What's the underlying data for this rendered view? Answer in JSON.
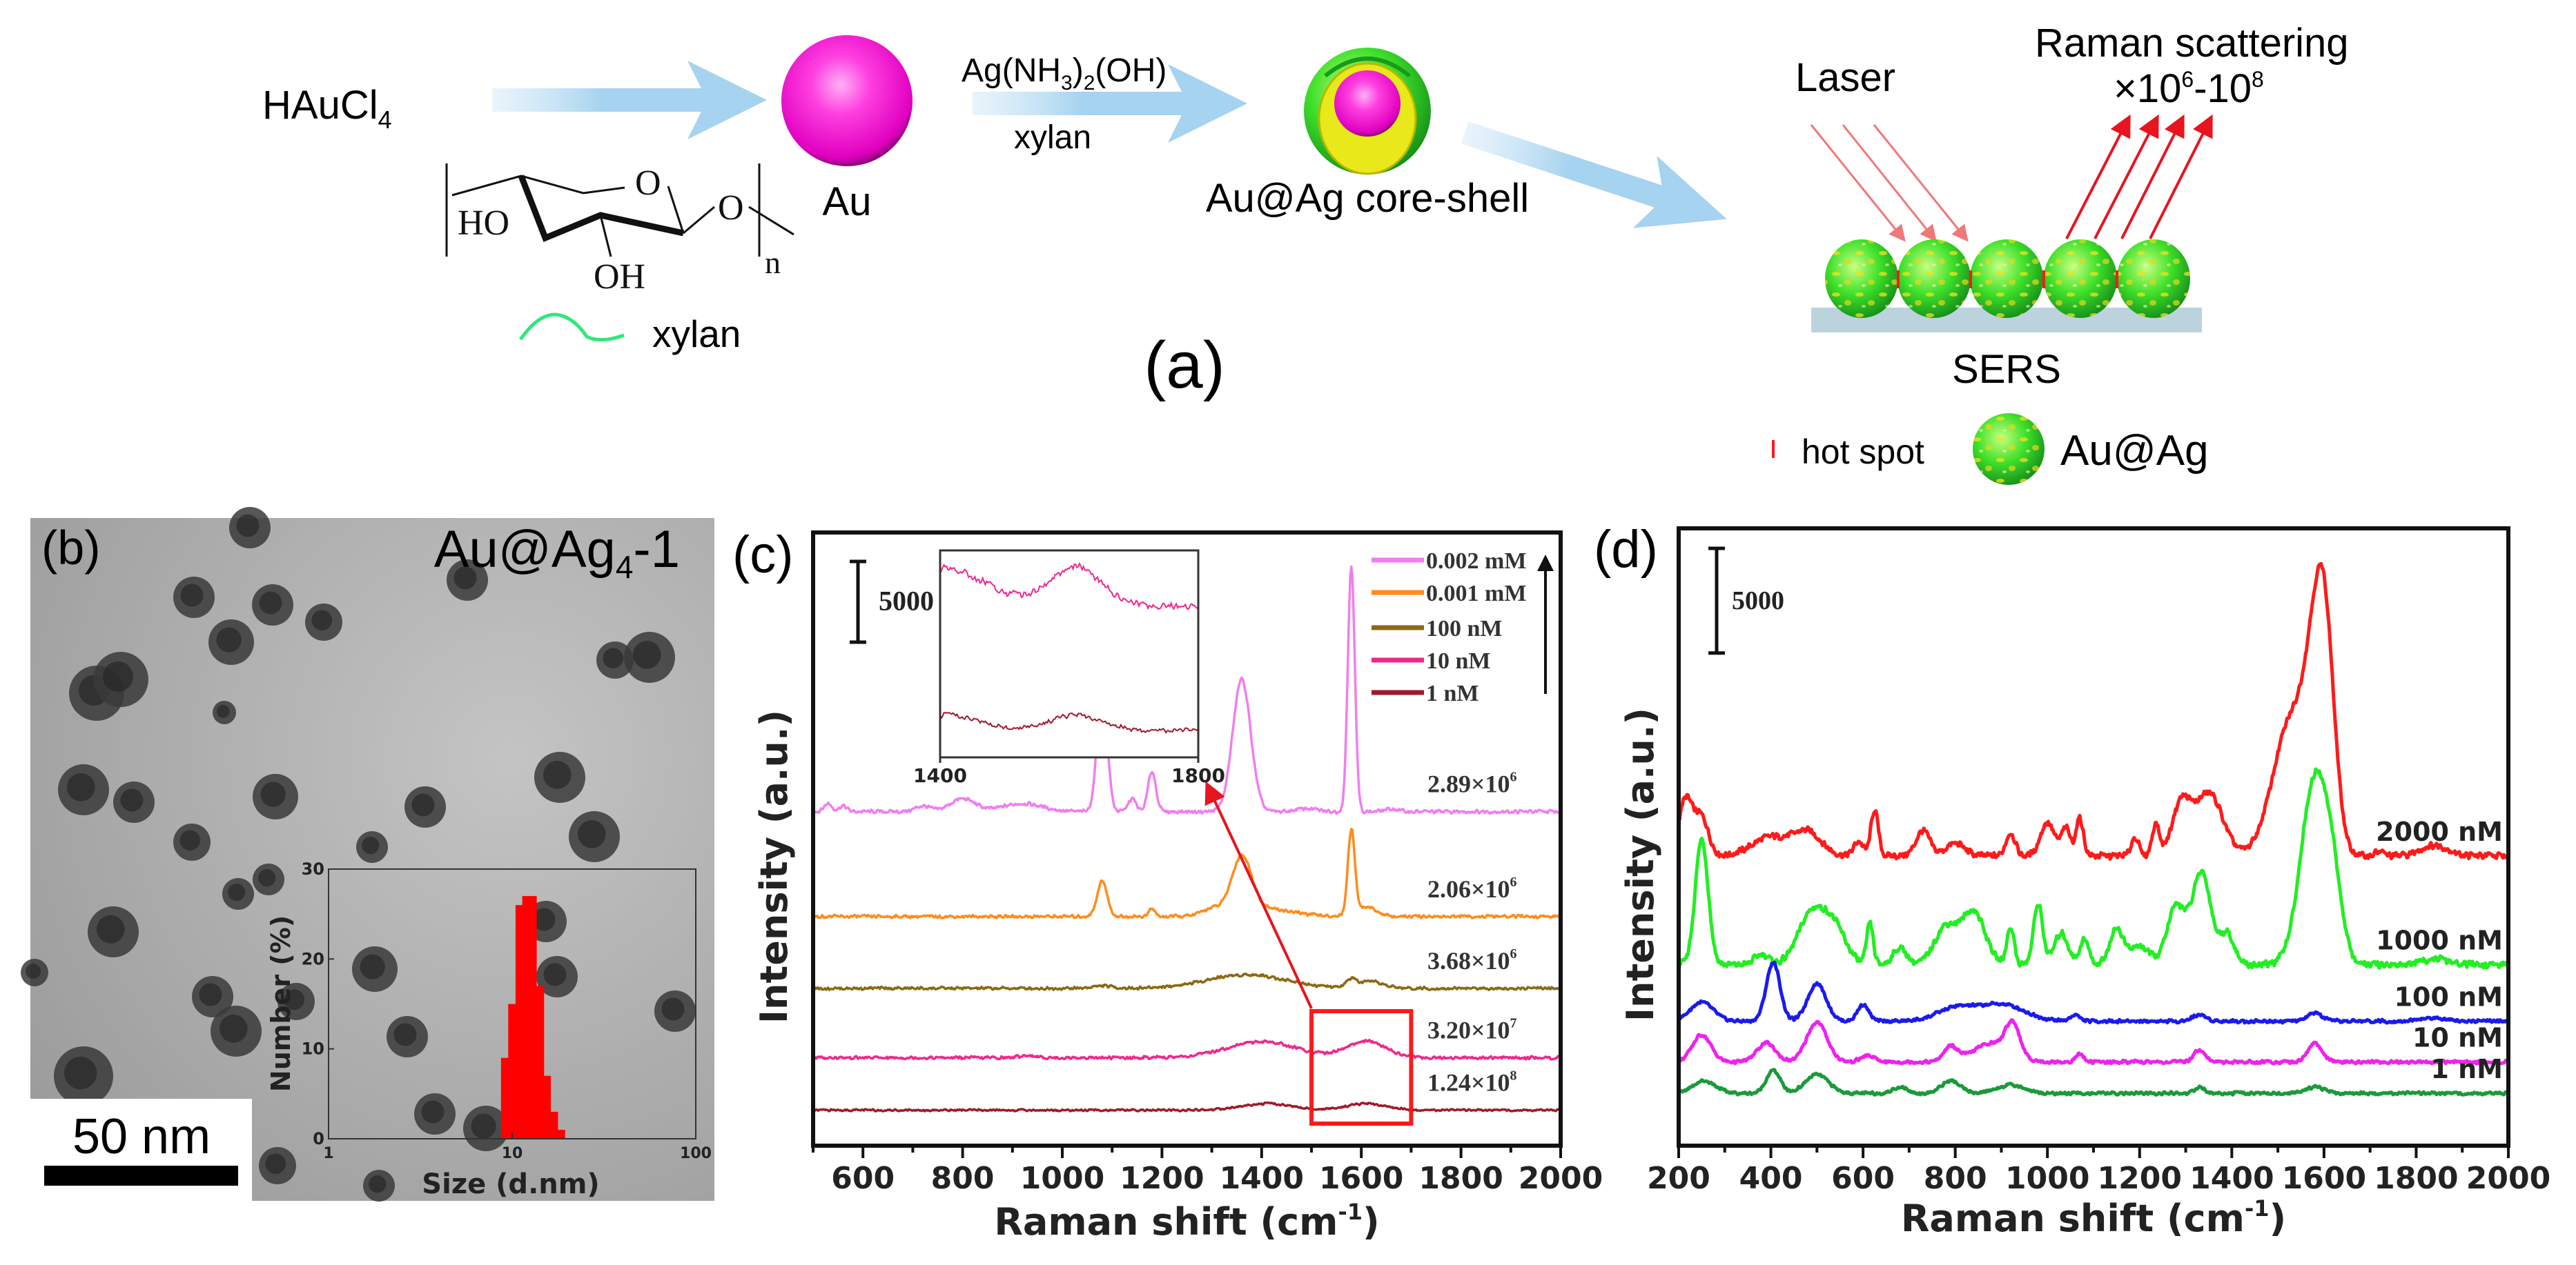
{
  "panel_a": {
    "label": "(a)",
    "precursor": {
      "text": "HAuCl",
      "sub": "4"
    },
    "au_label": "Au",
    "reagent": {
      "a": "Ag(NH",
      "sub1": "3",
      "b": ")",
      "sub2": "2",
      "c": "(OH)"
    },
    "reagent_xylan": "xylan",
    "core_shell_label": "Au@Ag core-shell",
    "structure": {
      "ho": "HO",
      "o_ring": "O",
      "oh": "OH",
      "o_link": "O",
      "n": "n"
    },
    "legend_xylan": "xylan",
    "laser": "Laser",
    "raman_title": "Raman scattering",
    "enhancement": {
      "prefix": "×10",
      "exp1": "6",
      "mid": "-10",
      "exp2": "8"
    },
    "sers": "SERS",
    "hot_spot": "hot spot",
    "au_ag": "Au@Ag",
    "colors": {
      "arrow": "#a6d3ef",
      "au": "#ff2bd6",
      "laser": "#f07878",
      "scatter": "#e8141e",
      "sphere": "#33dd22"
    }
  },
  "panel_b": {
    "label": "(b)",
    "sample": {
      "text": "Au@Ag",
      "sub": "4",
      "suffix": "-1"
    },
    "scale_bar": "50 nm"
  },
  "panel_c": {
    "label": "(c)"
  },
  "panel_d": {
    "label": "(d)"
  },
  "chart_data": [
    {
      "id": "size-histogram",
      "type": "bar",
      "x_scale": "log",
      "sizes": [
        9.5,
        10.4,
        11.4,
        12.4,
        13.6,
        14.8,
        16.2,
        17.7
      ],
      "values": [
        9,
        15,
        26,
        27,
        17,
        7,
        3,
        1
      ],
      "xlim": [
        1,
        100
      ],
      "ylim": [
        0,
        30
      ],
      "xticks": [
        1,
        10,
        100
      ],
      "yticks": [
        0,
        10,
        20,
        30
      ],
      "xlabel": "Size (d.nm)",
      "ylabel": "Number (%)",
      "color": "#ff0000"
    },
    {
      "id": "sers-spectra-c",
      "type": "line",
      "xlabel": {
        "text": "Raman shift (cm",
        "sup": "-1",
        "end": ")"
      },
      "ylabel": "Intensity (a.u.)",
      "xlim": [
        500,
        2000
      ],
      "ylim": [
        0,
        38000
      ],
      "xticks": [
        600,
        800,
        1000,
        1200,
        1400,
        1600,
        1800,
        2000
      ],
      "scale_bar": {
        "value": 5000,
        "label": "5000"
      },
      "highlight_range": [
        1500,
        1700
      ],
      "series": [
        {
          "name": "0.002 mM",
          "color": "#f07ef0",
          "offset": 20700,
          "noise": 130,
          "ef_text": "2.89×10",
          "ef_exp": "6",
          "peaks": [
            [
              530,
              500,
              8
            ],
            [
              560,
              350,
              8
            ],
            [
              720,
              350,
              15
            ],
            [
              800,
              800,
              25
            ],
            [
              920,
              500,
              40
            ],
            [
              1080,
              7700,
              10
            ],
            [
              1140,
              800,
              8
            ],
            [
              1180,
              2500,
              8
            ],
            [
              1360,
              8200,
              18
            ],
            [
              1490,
              200,
              20
            ],
            [
              1580,
              15300,
              7
            ],
            [
              1660,
              150,
              15
            ]
          ]
        },
        {
          "name": "0.001 mM",
          "color": "#ff8c1a",
          "offset": 14200,
          "noise": 110,
          "ef_text": "2.06×10",
          "ef_exp": "6",
          "peaks": [
            [
              1080,
              2200,
              10
            ],
            [
              1180,
              500,
              6
            ],
            [
              1300,
              400,
              20
            ],
            [
              1360,
              3400,
              20
            ],
            [
              1400,
              500,
              60
            ],
            [
              1580,
              5250,
              7
            ],
            [
              1610,
              600,
              20
            ]
          ]
        },
        {
          "name": "100 nM",
          "color": "#8b6914",
          "offset": 9750,
          "noise": 110,
          "ef_text": "3.68×10",
          "ef_exp": "6",
          "peaks": [
            [
              1080,
              150,
              20
            ],
            [
              1370,
              850,
              80
            ],
            [
              1580,
              500,
              10
            ],
            [
              1620,
              400,
              25
            ]
          ]
        },
        {
          "name": "10 nM",
          "color": "#f0288c",
          "offset": 5450,
          "noise": 110,
          "ef_text": "3.20×10",
          "ef_exp": "7",
          "peaks": [
            [
              930,
              150,
              15
            ],
            [
              1400,
              1000,
              70
            ],
            [
              1610,
              1000,
              40
            ]
          ]
        },
        {
          "name": "1 nM",
          "color": "#a01a2a",
          "offset": 2200,
          "noise": 70,
          "ef_text": "1.24×10",
          "ef_exp": "8",
          "peaks": [
            [
              1410,
              400,
              50
            ],
            [
              1610,
              400,
              40
            ]
          ]
        }
      ],
      "inset": {
        "xlim": [
          1400,
          1800
        ],
        "ylim": [
          1500,
          6900
        ],
        "xticks": [
          1400,
          1800
        ],
        "series_indices": [
          3,
          4
        ]
      }
    },
    {
      "id": "sers-spectra-d",
      "type": "line",
      "xlabel": {
        "text": "Raman shift (cm",
        "sup": "-1",
        "end": ")"
      },
      "ylabel": "Intensity (a.u.)",
      "xlim": [
        200,
        2000
      ],
      "ylim": [
        0,
        29500
      ],
      "xticks": [
        200,
        400,
        600,
        800,
        1000,
        1200,
        1400,
        1600,
        1800,
        2000
      ],
      "scale_bar": {
        "value": 5000,
        "label": "5000"
      },
      "series": [
        {
          "name": "2000 nM",
          "color": "#ff1a1a",
          "offset": 13850,
          "noise": 180,
          "peaks": [
            [
              215,
              2700,
              15
            ],
            [
              250,
              1800,
              15
            ],
            [
              400,
              900,
              40
            ],
            [
              480,
              1100,
              30
            ],
            [
              590,
              700,
              10
            ],
            [
              625,
              2200,
              8
            ],
            [
              730,
              1200,
              15
            ],
            [
              800,
              600,
              20
            ],
            [
              920,
              1100,
              10
            ],
            [
              1000,
              1600,
              15
            ],
            [
              1040,
              1300,
              10
            ],
            [
              1070,
              1800,
              8
            ],
            [
              1190,
              900,
              8
            ],
            [
              1235,
              1500,
              8
            ],
            [
              1290,
              2400,
              20
            ],
            [
              1350,
              3000,
              30
            ],
            [
              1530,
              6500,
              40
            ],
            [
              1570,
              3000,
              20
            ],
            [
              1600,
              11000,
              22
            ],
            [
              1720,
              200,
              10
            ],
            [
              1840,
              500,
              30
            ]
          ]
        },
        {
          "name": "1000 nM",
          "color": "#22ee22",
          "offset": 8650,
          "noise": 180,
          "peaks": [
            [
              250,
              6000,
              14
            ],
            [
              380,
              500,
              15
            ],
            [
              490,
              2500,
              30
            ],
            [
              540,
              1500,
              25
            ],
            [
              615,
              2000,
              7
            ],
            [
              680,
              800,
              15
            ],
            [
              780,
              1800,
              25
            ],
            [
              840,
              2500,
              25
            ],
            [
              920,
              1800,
              8
            ],
            [
              980,
              2900,
              10
            ],
            [
              1030,
              1500,
              15
            ],
            [
              1080,
              1200,
              10
            ],
            [
              1150,
              1700,
              15
            ],
            [
              1200,
              900,
              20
            ],
            [
              1280,
              2800,
              20
            ],
            [
              1335,
              4400,
              20
            ],
            [
              1390,
              1500,
              15
            ],
            [
              1580,
              8800,
              30
            ],
            [
              1620,
              2500,
              20
            ],
            [
              1840,
              300,
              25
            ]
          ]
        },
        {
          "name": "100 nM",
          "color": "#1a1aee",
          "offset": 5950,
          "noise": 90,
          "peaks": [
            [
              250,
              900,
              25
            ],
            [
              405,
              2800,
              15
            ],
            [
              500,
              1800,
              20
            ],
            [
              600,
              800,
              12
            ],
            [
              800,
              600,
              40
            ],
            [
              900,
              800,
              50
            ],
            [
              1060,
              300,
              10
            ],
            [
              1330,
              300,
              15
            ],
            [
              1580,
              400,
              15
            ],
            [
              1840,
              150,
              30
            ]
          ]
        },
        {
          "name": "10 nM",
          "color": "#ee22ee",
          "offset": 4000,
          "noise": 90,
          "peaks": [
            [
              250,
              1300,
              20
            ],
            [
              390,
              900,
              20
            ],
            [
              500,
              1900,
              22
            ],
            [
              610,
              300,
              15
            ],
            [
              790,
              700,
              15
            ],
            [
              880,
              900,
              40
            ],
            [
              925,
              1500,
              15
            ],
            [
              1070,
              400,
              8
            ],
            [
              1330,
              600,
              12
            ],
            [
              1580,
              900,
              15
            ]
          ]
        },
        {
          "name": "1 nM",
          "color": "#1a9a3a",
          "offset": 2500,
          "noise": 80,
          "peaks": [
            [
              255,
              600,
              25
            ],
            [
              405,
              1100,
              15
            ],
            [
              500,
              900,
              25
            ],
            [
              680,
              300,
              15
            ],
            [
              790,
              600,
              20
            ],
            [
              920,
              400,
              30
            ],
            [
              1330,
              300,
              10
            ],
            [
              1580,
              300,
              20
            ]
          ]
        }
      ]
    }
  ]
}
